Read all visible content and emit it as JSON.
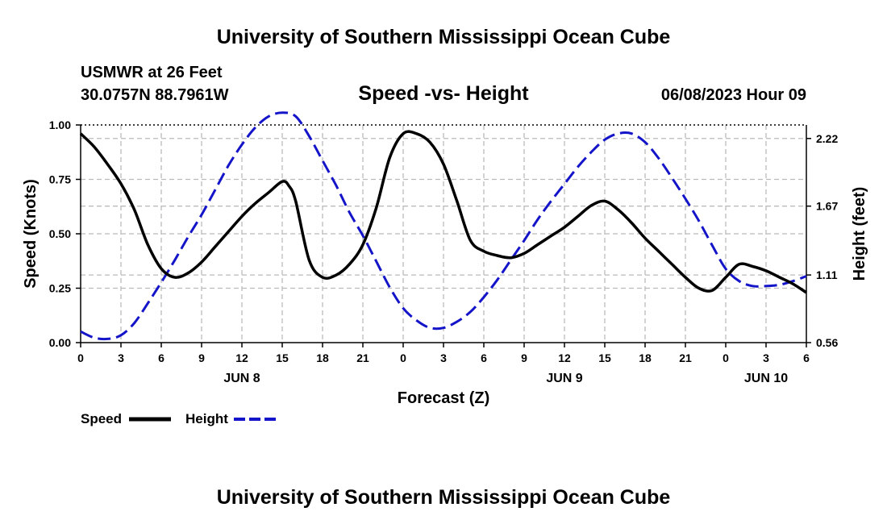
{
  "header": {
    "title": "University of Southern Mississippi Ocean Cube",
    "station": "USMWR at 26 Feet",
    "coords": "30.0757N  88.7961W",
    "datetime": "06/08/2023 Hour 09"
  },
  "footer": {
    "title": "University of Southern Mississippi Ocean Cube"
  },
  "chart_data": {
    "type": "line",
    "title": "Speed -vs- Height",
    "xlabel": "Forecast (Z)",
    "ylabel_left": "Speed (Knots)",
    "ylabel_right": "Height (feet)",
    "x_unit": "hours since JUN 8 00Z",
    "xlim": [
      0,
      54
    ],
    "ylim_left": [
      0,
      1.0
    ],
    "ylim_right": [
      0.56,
      2.33
    ],
    "grid": true,
    "legend_position": "bottom-left",
    "x_tick_labels": [
      "0",
      "3",
      "6",
      "9",
      "12",
      "15",
      "18",
      "21",
      "0",
      "3",
      "6",
      "9",
      "12",
      "15",
      "18",
      "21",
      "0",
      "3",
      "6"
    ],
    "day_labels": [
      {
        "label": "JUN 8",
        "hour": 12
      },
      {
        "label": "JUN 9",
        "hour": 36
      },
      {
        "label": "JUN 10",
        "hour": 51
      }
    ],
    "y_left_ticks": [
      "0.00",
      "0.25",
      "0.50",
      "0.75",
      "1.00"
    ],
    "y_right_ticks": [
      "0.56",
      "1.11",
      "1.67",
      "2.22"
    ],
    "series": [
      {
        "name": "Speed",
        "color": "#000000",
        "dash": "solid",
        "axis": "left",
        "x": [
          0,
          1,
          2,
          3,
          4,
          5,
          6,
          7,
          8,
          9,
          10,
          11,
          12,
          13,
          14,
          15,
          15.5,
          16,
          17,
          18,
          19,
          20,
          21,
          22,
          23,
          24,
          25,
          26,
          27,
          28,
          29,
          30,
          31,
          32,
          33,
          34,
          35,
          36,
          37,
          38,
          39,
          40,
          41,
          42,
          43,
          44,
          45,
          46,
          47,
          48,
          49,
          50,
          51,
          52,
          53,
          54
        ],
        "values": [
          0.96,
          0.9,
          0.82,
          0.73,
          0.61,
          0.45,
          0.34,
          0.3,
          0.32,
          0.37,
          0.44,
          0.51,
          0.58,
          0.64,
          0.69,
          0.74,
          0.72,
          0.65,
          0.38,
          0.3,
          0.31,
          0.36,
          0.45,
          0.62,
          0.85,
          0.96,
          0.96,
          0.92,
          0.82,
          0.65,
          0.47,
          0.42,
          0.4,
          0.39,
          0.41,
          0.45,
          0.49,
          0.53,
          0.58,
          0.63,
          0.65,
          0.61,
          0.55,
          0.48,
          0.42,
          0.36,
          0.3,
          0.25,
          0.24,
          0.3,
          0.36,
          0.35,
          0.33,
          0.3,
          0.27,
          0.23
        ]
      },
      {
        "name": "Height",
        "color": "#1414c8",
        "dash": "dashed",
        "axis": "right",
        "x": [
          0,
          1,
          2,
          3,
          4,
          5,
          6,
          7,
          8,
          9,
          10,
          11,
          12,
          13,
          14,
          15,
          16,
          17,
          18,
          19,
          20,
          21,
          22,
          23,
          24,
          25,
          26,
          27,
          28,
          29,
          30,
          31,
          32,
          33,
          34,
          35,
          36,
          37,
          38,
          39,
          40,
          41,
          42,
          43,
          44,
          45,
          46,
          47,
          48,
          49,
          50,
          51,
          52,
          53,
          54
        ],
        "values": [
          0.65,
          0.6,
          0.59,
          0.62,
          0.72,
          0.88,
          1.05,
          1.23,
          1.42,
          1.6,
          1.8,
          2.0,
          2.17,
          2.31,
          2.4,
          2.43,
          2.4,
          2.24,
          2.04,
          1.84,
          1.62,
          1.43,
          1.22,
          1.01,
          0.84,
          0.74,
          0.68,
          0.68,
          0.73,
          0.81,
          0.93,
          1.07,
          1.23,
          1.39,
          1.56,
          1.71,
          1.85,
          1.99,
          2.11,
          2.21,
          2.26,
          2.26,
          2.19,
          2.06,
          1.9,
          1.73,
          1.55,
          1.35,
          1.16,
          1.06,
          1.02,
          1.02,
          1.03,
          1.06,
          1.1
        ]
      }
    ]
  }
}
